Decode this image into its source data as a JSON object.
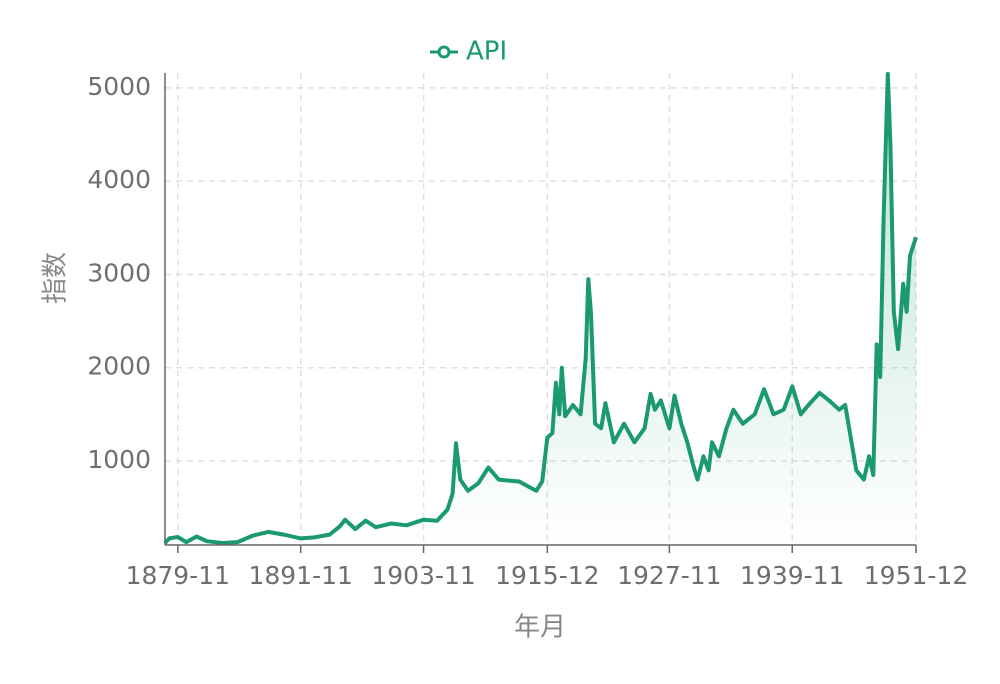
{
  "chart_data": {
    "type": "line",
    "x_label": "年月",
    "y_label": "指数",
    "legend": "top",
    "grid": true,
    "xlim": [
      "1878-08",
      "1951-12"
    ],
    "xticks": [
      "1879-11",
      "1891-11",
      "1903-11",
      "1915-12",
      "1927-11",
      "1939-11",
      "1951-12"
    ],
    "ylim": [
      99,
      5160
    ],
    "yticks": [
      1000,
      2000,
      3000,
      4000,
      5000
    ],
    "x": [
      "1878-08",
      "1879-01",
      "1879-11",
      "1880-09",
      "1881-09",
      "1882-09",
      "1884-03",
      "1885-09",
      "1887-03",
      "1888-09",
      "1890-03",
      "1891-11",
      "1893-03",
      "1894-09",
      "1895-09",
      "1896-03",
      "1897-03",
      "1898-03",
      "1899-03",
      "1900-09",
      "1902-03",
      "1903-11",
      "1905-03",
      "1906-03",
      "1906-09",
      "1907-01",
      "1907-06",
      "1908-03",
      "1909-03",
      "1910-03",
      "1911-03",
      "1912-03",
      "1913-03",
      "1914-03",
      "1914-11",
      "1915-06",
      "1915-12",
      "1916-06",
      "1916-10",
      "1917-02",
      "1917-05",
      "1917-09",
      "1918-06",
      "1919-03",
      "1919-09",
      "1919-12",
      "1920-03",
      "1920-08",
      "1921-03",
      "1921-08",
      "1922-06",
      "1923-06",
      "1924-06",
      "1925-06",
      "1926-01",
      "1926-06",
      "1927-01",
      "1927-11",
      "1928-05",
      "1929-01",
      "1929-08",
      "1930-03",
      "1930-08",
      "1931-03",
      "1931-09",
      "1932-01",
      "1932-09",
      "1933-06",
      "1934-02",
      "1935-01",
      "1936-03",
      "1937-02",
      "1938-01",
      "1939-01",
      "1939-11",
      "1940-09",
      "1941-06",
      "1942-07",
      "1943-06",
      "1944-06",
      "1945-01",
      "1946-02",
      "1946-11",
      "1947-05",
      "1947-10",
      "1948-02",
      "1948-06",
      "1948-10",
      "1949-03",
      "1949-06",
      "1949-10",
      "1950-03",
      "1950-09",
      "1951-01",
      "1951-05",
      "1951-12"
    ],
    "series": [
      {
        "name": "API",
        "color": "#1b9a6f",
        "values": [
          120,
          170,
          185,
          130,
          190,
          140,
          120,
          130,
          200,
          240,
          210,
          170,
          180,
          210,
          300,
          370,
          270,
          360,
          290,
          330,
          310,
          370,
          360,
          480,
          650,
          1190,
          800,
          680,
          760,
          930,
          800,
          790,
          780,
          720,
          680,
          780,
          1250,
          1300,
          1840,
          1500,
          2000,
          1480,
          1600,
          1500,
          2100,
          2950,
          2600,
          1400,
          1350,
          1620,
          1200,
          1400,
          1200,
          1350,
          1720,
          1550,
          1650,
          1350,
          1700,
          1400,
          1200,
          950,
          800,
          1050,
          900,
          1200,
          1050,
          1350,
          1550,
          1400,
          1500,
          1770,
          1500,
          1550,
          1800,
          1500,
          1600,
          1730,
          1650,
          1550,
          1600,
          900,
          800,
          1050,
          850,
          2250,
          1900,
          3600,
          5150,
          4400,
          2600,
          2200,
          2900,
          2600,
          3200,
          3400
        ]
      }
    ]
  }
}
